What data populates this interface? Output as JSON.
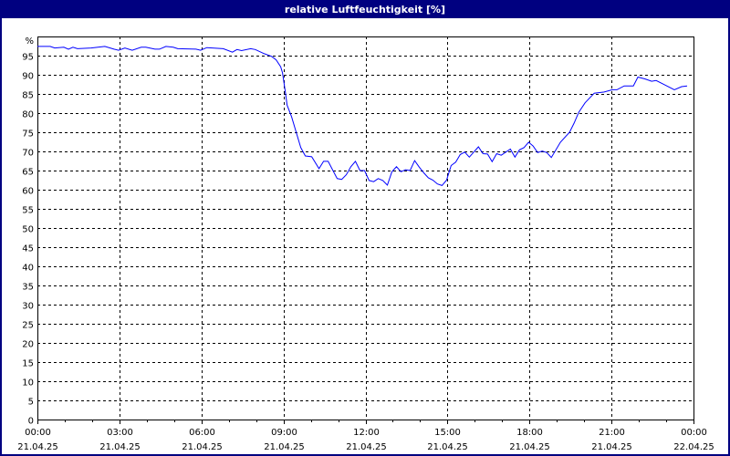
{
  "window": {
    "title": "relative Luftfeuchtigkeit [%]"
  },
  "chart_data": {
    "type": "line",
    "title": "relative Luftfeuchtigkeit [%]",
    "ylabel": "%",
    "ylim": [
      0,
      100
    ],
    "yticks": [
      0,
      5,
      10,
      15,
      20,
      25,
      30,
      35,
      40,
      45,
      50,
      55,
      60,
      65,
      70,
      75,
      80,
      85,
      90,
      95
    ],
    "xlim": [
      "21.04.25 00:00",
      "22.04.25 00:00"
    ],
    "xticks": [
      {
        "time": "00:00",
        "date": "21.04.25"
      },
      {
        "time": "03:00",
        "date": "21.04.25"
      },
      {
        "time": "06:00",
        "date": "21.04.25"
      },
      {
        "time": "09:00",
        "date": "21.04.25"
      },
      {
        "time": "12:00",
        "date": "21.04.25"
      },
      {
        "time": "15:00",
        "date": "21.04.25"
      },
      {
        "time": "18:00",
        "date": "21.04.25"
      },
      {
        "time": "21:00",
        "date": "21.04.25"
      },
      {
        "time": "00:00",
        "date": "22.04.25"
      }
    ],
    "grid": true,
    "line_color": "#0000ff",
    "x": [
      "00:00",
      "00:28",
      "00:38",
      "00:58",
      "01:08",
      "01:18",
      "01:28",
      "01:58",
      "02:28",
      "02:48",
      "02:58",
      "03:12",
      "03:28",
      "03:48",
      "03:58",
      "04:18",
      "04:28",
      "04:42",
      "04:58",
      "05:08",
      "05:48",
      "05:58",
      "06:12",
      "06:48",
      "07:08",
      "07:18",
      "07:28",
      "07:48",
      "07:58",
      "08:18",
      "08:34",
      "08:44",
      "08:54",
      "08:58",
      "09:04",
      "09:08",
      "09:18",
      "09:28",
      "09:38",
      "09:48",
      "10:02",
      "10:18",
      "10:28",
      "10:38",
      "10:58",
      "11:08",
      "11:18",
      "11:28",
      "11:38",
      "11:48",
      "11:58",
      "12:08",
      "12:18",
      "12:28",
      "12:38",
      "12:48",
      "12:58",
      "13:08",
      "13:18",
      "13:28",
      "13:38",
      "13:48",
      "13:58",
      "14:08",
      "14:18",
      "14:28",
      "14:38",
      "14:48",
      "14:58",
      "15:08",
      "15:18",
      "15:28",
      "15:38",
      "15:48",
      "16:08",
      "16:18",
      "16:28",
      "16:38",
      "16:48",
      "16:58",
      "17:18",
      "17:28",
      "17:38",
      "17:48",
      "17:58",
      "18:08",
      "18:18",
      "18:28",
      "18:38",
      "18:48",
      "19:08",
      "19:28",
      "19:38",
      "19:48",
      "20:02",
      "20:22",
      "20:44",
      "21:02",
      "21:12",
      "21:28",
      "21:48",
      "21:58",
      "22:14",
      "22:28",
      "22:38",
      "22:58",
      "23:18",
      "23:34",
      "23:46"
    ],
    "values": [
      97.4,
      97.4,
      97.0,
      97.2,
      96.7,
      97.2,
      96.8,
      97.0,
      97.4,
      96.7,
      96.4,
      97.0,
      96.4,
      97.2,
      97.2,
      96.7,
      96.7,
      97.4,
      97.2,
      96.8,
      96.7,
      96.4,
      97.1,
      96.8,
      95.9,
      96.6,
      96.3,
      96.8,
      96.6,
      95.5,
      94.8,
      93.9,
      92.1,
      90.5,
      85.7,
      82.1,
      79.0,
      75.0,
      71.0,
      68.8,
      68.6,
      65.5,
      67.4,
      67.4,
      62.9,
      62.7,
      63.9,
      66.0,
      67.4,
      65.0,
      65.0,
      62.4,
      62.1,
      62.9,
      62.4,
      61.2,
      64.7,
      66.0,
      64.7,
      65.2,
      65.0,
      67.6,
      65.9,
      64.4,
      63.1,
      62.5,
      61.5,
      61.1,
      62.5,
      66.3,
      67.2,
      69.2,
      69.8,
      68.5,
      71.2,
      69.4,
      69.3,
      67.3,
      69.4,
      69.0,
      70.6,
      68.5,
      70.4,
      71.0,
      72.4,
      71.4,
      69.7,
      70.1,
      69.7,
      68.4,
      72.4,
      75.0,
      77.4,
      80.2,
      82.7,
      85.2,
      85.5,
      86.1,
      86.1,
      87.1,
      87.1,
      89.4,
      88.9,
      88.3,
      88.5,
      87.3,
      86.1,
      86.9,
      87.1
    ]
  }
}
